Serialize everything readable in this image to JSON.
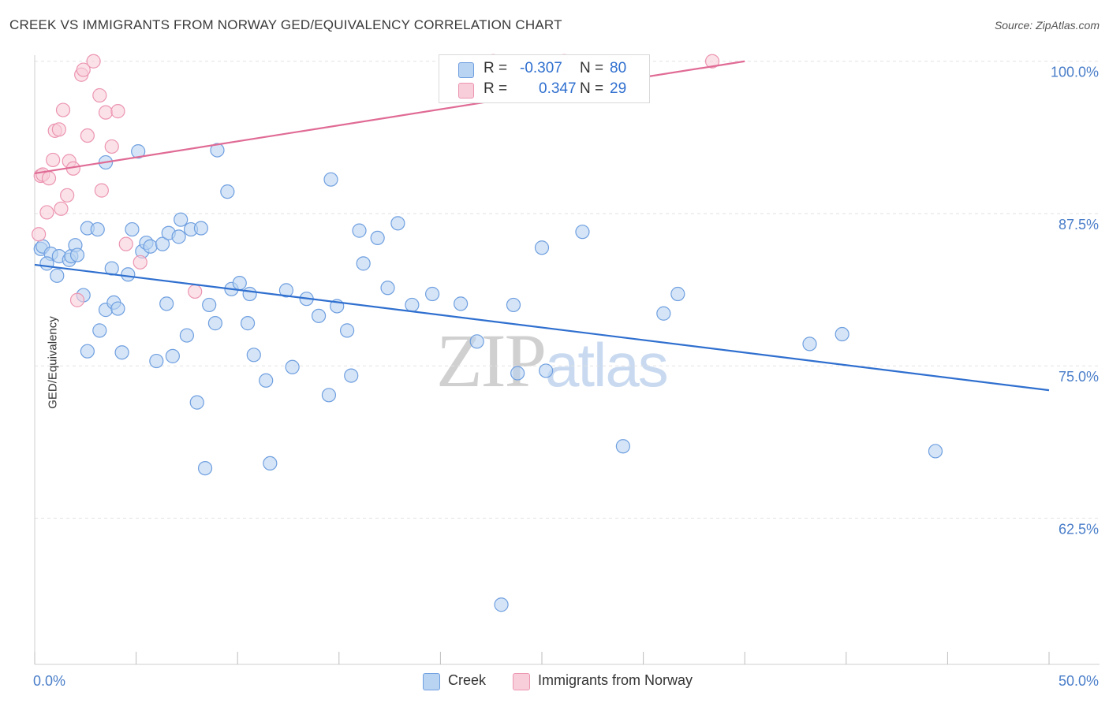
{
  "title": "CREEK VS IMMIGRANTS FROM NORWAY GED/EQUIVALENCY CORRELATION CHART",
  "source": "Source: ZipAtlas.com",
  "watermark": {
    "zip": "ZIP",
    "atlas": "atlas"
  },
  "colors": {
    "creek_fill": "#b9d3f2",
    "creek_stroke": "#6f9fe0",
    "creek_line": "#2f6fcf",
    "norway_fill": "#f9cedb",
    "norway_stroke": "#ec95b1",
    "norway_line": "#e06b95",
    "tick_label": "#4a7ec9",
    "grid": "#e2e2e2"
  },
  "legend": {
    "rows": [
      {
        "label": "R =",
        "r": "-0.307",
        "n_label": "N =",
        "n": "80",
        "color": "#b9d3f2",
        "stroke": "#6f9fe0"
      },
      {
        "label": "R =",
        "r": "0.347",
        "n_label": "N =",
        "n": "29",
        "color": "#f9cedb",
        "stroke": "#ec95b1"
      }
    ]
  },
  "bottom_legend": [
    {
      "label": "Creek",
      "color": "#b9d3f2",
      "stroke": "#6f9fe0"
    },
    {
      "label": "Immigrants from Norway",
      "color": "#f9cedb",
      "stroke": "#ec95b1"
    }
  ],
  "chart_data": {
    "type": "scatter",
    "xlabel": "",
    "ylabel": "GED/Equivalency",
    "xlim": [
      0,
      50
    ],
    "ylim": [
      50.5,
      100.5
    ],
    "x_tick_labels": [
      {
        "value": 0,
        "label": "0.0%"
      },
      {
        "value": 50,
        "label": "50.0%"
      }
    ],
    "y_tick_labels": [
      {
        "value": 100,
        "label": "100.0%"
      },
      {
        "value": 87.5,
        "label": "87.5%"
      },
      {
        "value": 75,
        "label": "75.0%"
      },
      {
        "value": 62.5,
        "label": "62.5%"
      }
    ],
    "grid": true,
    "legend_position": "top-center",
    "series": [
      {
        "name": "Creek",
        "points": [
          [
            0.3,
            84.6
          ],
          [
            0.4,
            84.8
          ],
          [
            0.8,
            84.2
          ],
          [
            0.6,
            83.4
          ],
          [
            1.1,
            82.4
          ],
          [
            1.2,
            84.0
          ],
          [
            1.7,
            83.7
          ],
          [
            1.8,
            84.0
          ],
          [
            2.0,
            84.9
          ],
          [
            2.1,
            84.1
          ],
          [
            2.6,
            86.3
          ],
          [
            2.4,
            80.8
          ],
          [
            2.6,
            76.2
          ],
          [
            3.1,
            86.2
          ],
          [
            3.2,
            77.9
          ],
          [
            3.5,
            91.7
          ],
          [
            3.5,
            79.6
          ],
          [
            3.8,
            83.0
          ],
          [
            3.9,
            80.2
          ],
          [
            4.1,
            79.7
          ],
          [
            4.3,
            76.1
          ],
          [
            4.6,
            82.5
          ],
          [
            4.8,
            86.2
          ],
          [
            5.1,
            92.6
          ],
          [
            5.3,
            84.4
          ],
          [
            5.5,
            85.1
          ],
          [
            5.7,
            84.8
          ],
          [
            6.0,
            75.4
          ],
          [
            6.3,
            85.0
          ],
          [
            6.5,
            80.1
          ],
          [
            6.6,
            85.9
          ],
          [
            6.8,
            75.8
          ],
          [
            7.1,
            85.6
          ],
          [
            7.2,
            87.0
          ],
          [
            7.5,
            77.5
          ],
          [
            7.7,
            86.2
          ],
          [
            8.0,
            72.0
          ],
          [
            8.2,
            86.3
          ],
          [
            8.4,
            66.6
          ],
          [
            8.6,
            80.0
          ],
          [
            8.9,
            78.5
          ],
          [
            9.0,
            92.7
          ],
          [
            9.5,
            89.3
          ],
          [
            9.7,
            81.3
          ],
          [
            10.1,
            81.8
          ],
          [
            10.5,
            78.5
          ],
          [
            10.6,
            80.9
          ],
          [
            10.8,
            75.9
          ],
          [
            11.4,
            73.8
          ],
          [
            11.6,
            67.0
          ],
          [
            12.4,
            81.2
          ],
          [
            12.7,
            74.9
          ],
          [
            13.4,
            80.5
          ],
          [
            14.0,
            79.1
          ],
          [
            14.5,
            72.6
          ],
          [
            14.6,
            90.3
          ],
          [
            14.9,
            79.9
          ],
          [
            15.4,
            77.9
          ],
          [
            15.6,
            74.2
          ],
          [
            16.0,
            86.1
          ],
          [
            16.2,
            83.4
          ],
          [
            16.9,
            85.5
          ],
          [
            17.4,
            81.4
          ],
          [
            17.9,
            86.7
          ],
          [
            18.6,
            80.0
          ],
          [
            19.6,
            80.9
          ],
          [
            21.0,
            80.1
          ],
          [
            21.8,
            77.0
          ],
          [
            23.0,
            55.4
          ],
          [
            23.6,
            80.0
          ],
          [
            23.8,
            74.4
          ],
          [
            25.0,
            84.7
          ],
          [
            25.2,
            74.6
          ],
          [
            27.0,
            86.0
          ],
          [
            29.0,
            68.4
          ],
          [
            31.0,
            79.3
          ],
          [
            31.7,
            80.9
          ],
          [
            38.2,
            76.8
          ],
          [
            39.8,
            77.6
          ],
          [
            44.4,
            68.0
          ]
        ],
        "trend": [
          [
            0,
            83.3
          ],
          [
            50,
            73.0
          ]
        ]
      },
      {
        "name": "Immigrants from Norway",
        "points": [
          [
            0.2,
            85.8
          ],
          [
            0.3,
            90.6
          ],
          [
            0.4,
            90.7
          ],
          [
            0.6,
            87.6
          ],
          [
            0.7,
            90.4
          ],
          [
            0.9,
            91.9
          ],
          [
            1.0,
            94.3
          ],
          [
            1.2,
            94.4
          ],
          [
            1.3,
            87.9
          ],
          [
            1.4,
            96.0
          ],
          [
            1.6,
            89.0
          ],
          [
            1.7,
            91.8
          ],
          [
            1.9,
            91.2
          ],
          [
            2.1,
            80.4
          ],
          [
            2.3,
            98.9
          ],
          [
            2.4,
            99.3
          ],
          [
            2.6,
            93.9
          ],
          [
            2.9,
            100.0
          ],
          [
            3.2,
            97.2
          ],
          [
            3.3,
            89.4
          ],
          [
            3.5,
            95.8
          ],
          [
            3.8,
            93.0
          ],
          [
            4.1,
            95.9
          ],
          [
            4.5,
            85.0
          ],
          [
            5.2,
            83.5
          ],
          [
            7.9,
            81.1
          ],
          [
            22.6,
            100.0
          ],
          [
            26.1,
            100.0
          ],
          [
            33.4,
            100.0
          ]
        ],
        "trend": [
          [
            0,
            90.8
          ],
          [
            35.0,
            100.0
          ]
        ]
      }
    ]
  }
}
